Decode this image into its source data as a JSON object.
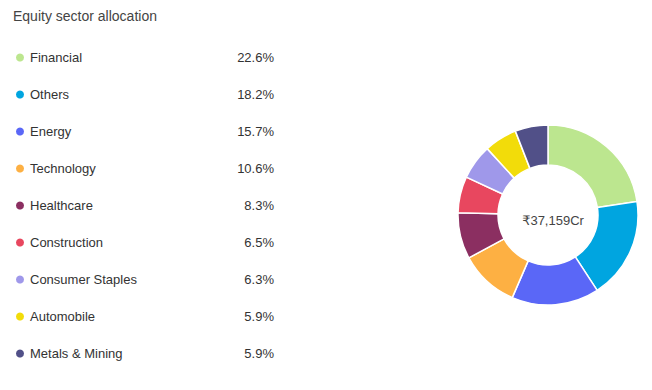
{
  "chart_data": {
    "type": "pie",
    "title": "Equity sector allocation",
    "annotations": [
      "₹37,159Cr"
    ],
    "categories": [
      "Financial",
      "Others",
      "Energy",
      "Technology",
      "Healthcare",
      "Construction",
      "Consumer Staples",
      "Automobile",
      "Metals & Mining"
    ],
    "values": [
      22.6,
      18.2,
      15.7,
      10.6,
      8.3,
      6.5,
      6.3,
      5.9,
      5.9
    ],
    "value_labels": [
      "22.6%",
      "18.2%",
      "15.7%",
      "10.6%",
      "8.3%",
      "6.5%",
      "6.3%",
      "5.9%",
      "5.9%"
    ],
    "colors": [
      "#bce68f",
      "#00a5e0",
      "#5a67f7",
      "#fdb043",
      "#8b2f61",
      "#e8475f",
      "#9f98ea",
      "#f2dc0a",
      "#515088"
    ],
    "legend": "left"
  }
}
